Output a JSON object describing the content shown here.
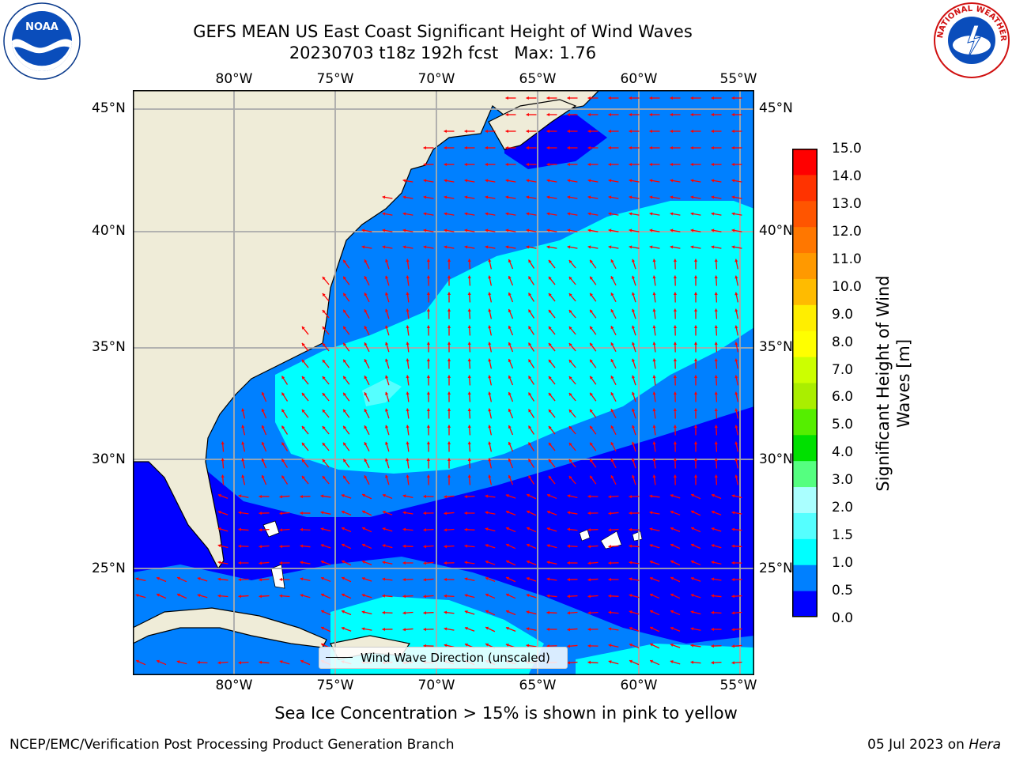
{
  "title": {
    "line1": "GEFS MEAN US East Coast Significant Height of Wind Waves",
    "line2": "20230703 t18z 192h fcst   Max: 1.76"
  },
  "map": {
    "lon_labels": [
      "80°W",
      "75°W",
      "70°W",
      "65°W",
      "60°W",
      "55°W"
    ],
    "lat_labels": [
      "45°N",
      "40°N",
      "35°N",
      "30°N",
      "25°N"
    ],
    "land_color": "#efecd8",
    "sea_colors": {
      "0.0-0.5": "#0000ff",
      "0.5-1.0": "#0080ff",
      "1.0-1.5": "#00ffff",
      "1.5-2.0": "#55ffff"
    },
    "arrow_color": "#ff0000"
  },
  "legend": {
    "label": "Wind Wave Direction (unscaled)"
  },
  "colorbar": {
    "label": "Significant Height of Wind Waves [m]",
    "ticks": [
      "15.0",
      "14.0",
      "13.0",
      "12.0",
      "11.0",
      "10.0",
      "9.0",
      "8.0",
      "7.0",
      "6.0",
      "5.0",
      "4.0",
      "3.0",
      "2.0",
      "1.5",
      "1.0",
      "0.5",
      "0.0"
    ],
    "colors": [
      "#0000ff",
      "#0080ff",
      "#00ffff",
      "#55ffff",
      "#aaffff",
      "#55ff80",
      "#00e000",
      "#55ee00",
      "#aaee00",
      "#ccff00",
      "#ffff00",
      "#ffee00",
      "#ffbb00",
      "#ff9900",
      "#ff7700",
      "#ff5500",
      "#ff3300",
      "#ff0000"
    ]
  },
  "ice_note": "Sea Ice Concentration > 15% is shown in pink to yellow",
  "footer": {
    "left": "NCEP/EMC/Verification Post Processing Product Generation Branch",
    "right_date": "05 Jul 2023 on ",
    "right_host": "Hera"
  },
  "logos": {
    "left": "NOAA",
    "right": "NATIONAL WEATHER SERVICE"
  }
}
